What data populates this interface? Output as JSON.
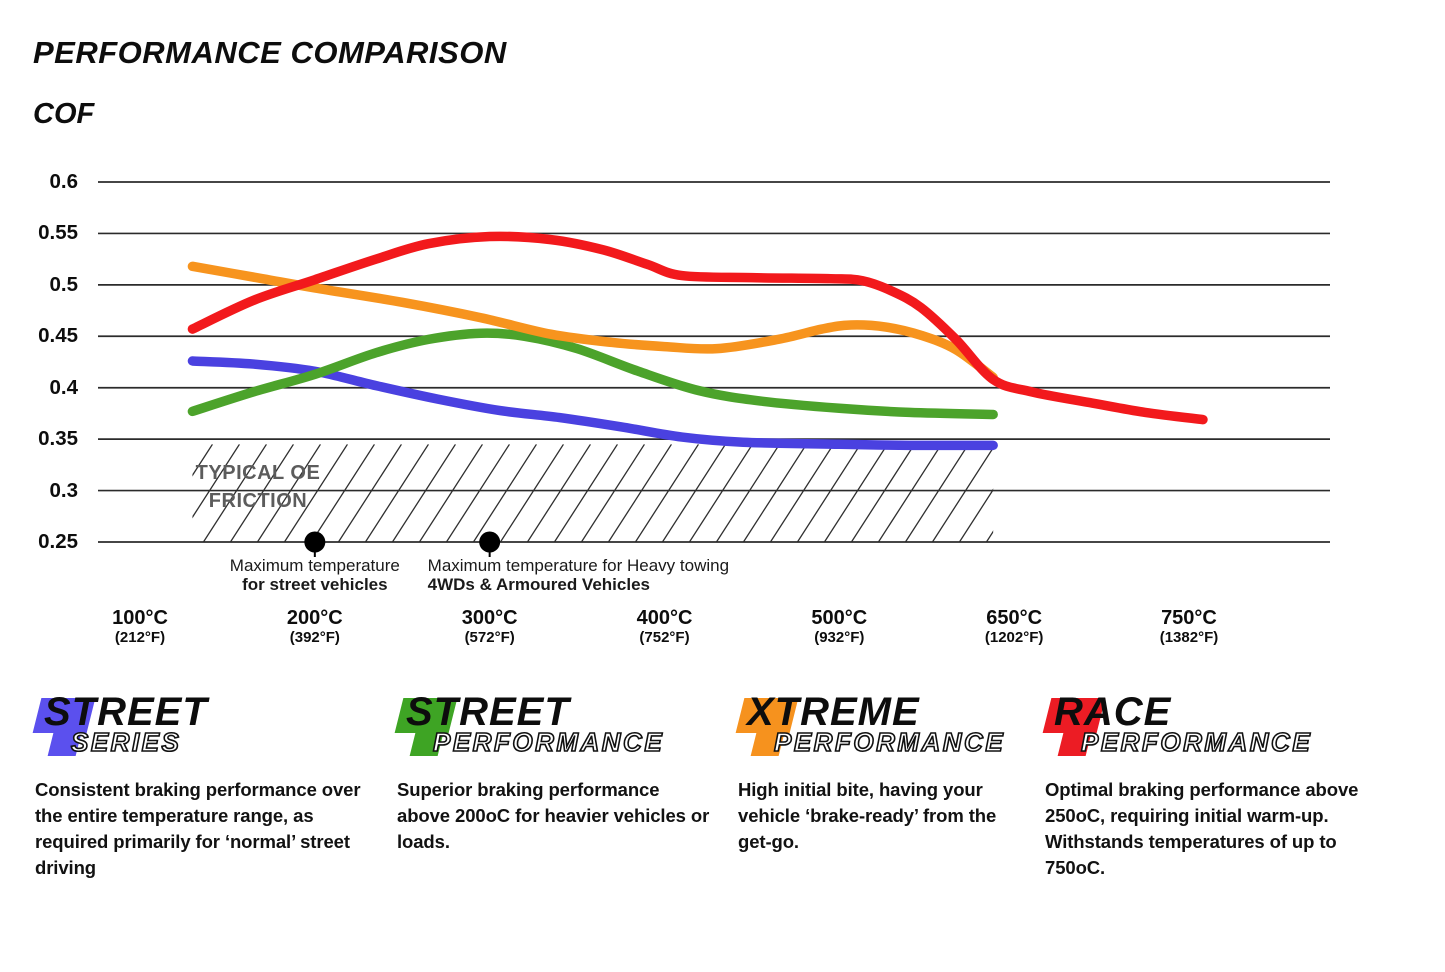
{
  "header": {
    "title": "PERFORMANCE COMPARISON",
    "axis_title": "COF"
  },
  "chart_data": {
    "type": "line",
    "title": "PERFORMANCE COMPARISON",
    "ylabel": "COF",
    "ylim": [
      0.25,
      0.6
    ],
    "grid": true,
    "y_ticks": [
      "0.6",
      "0.55",
      "0.5",
      "0.45",
      "0.4",
      "0.35",
      "0.3",
      "0.25"
    ],
    "x_ticks": [
      {
        "t": 100,
        "celsius": "100°C",
        "fahrenheit": "(212°F)"
      },
      {
        "t": 200,
        "celsius": "200°C",
        "fahrenheit": "(392°F)"
      },
      {
        "t": 300,
        "celsius": "300°C",
        "fahrenheit": "(572°F)"
      },
      {
        "t": 400,
        "celsius": "400°C",
        "fahrenheit": "(752°F)"
      },
      {
        "t": 500,
        "celsius": "500°C",
        "fahrenheit": "(932°F)"
      },
      {
        "t": 650,
        "celsius": "650°C",
        "fahrenheit": "(1202°F)"
      },
      {
        "t": 750,
        "celsius": "750°C",
        "fahrenheit": "(1382°F)"
      }
    ],
    "series": [
      {
        "name": "Street Series",
        "color": "#4a41e0",
        "points": [
          [
            130,
            0.426
          ],
          [
            165,
            0.423
          ],
          [
            200,
            0.416
          ],
          [
            235,
            0.402
          ],
          [
            270,
            0.389
          ],
          [
            305,
            0.378
          ],
          [
            340,
            0.371
          ],
          [
            375,
            0.362
          ],
          [
            410,
            0.352
          ],
          [
            445,
            0.347
          ],
          [
            500,
            0.345
          ],
          [
            560,
            0.344
          ],
          [
            632,
            0.344
          ]
        ]
      },
      {
        "name": "Street Performance",
        "color": "#4ca32b",
        "points": [
          [
            130,
            0.377
          ],
          [
            165,
            0.396
          ],
          [
            200,
            0.413
          ],
          [
            235,
            0.434
          ],
          [
            265,
            0.447
          ],
          [
            295,
            0.453
          ],
          [
            320,
            0.45
          ],
          [
            350,
            0.438
          ],
          [
            385,
            0.416
          ],
          [
            420,
            0.397
          ],
          [
            455,
            0.387
          ],
          [
            500,
            0.38
          ],
          [
            560,
            0.376
          ],
          [
            632,
            0.374
          ]
        ]
      },
      {
        "name": "Xtreme Performance",
        "color": "#f7941e",
        "points": [
          [
            130,
            0.518
          ],
          [
            170,
            0.506
          ],
          [
            200,
            0.497
          ],
          [
            250,
            0.483
          ],
          [
            295,
            0.468
          ],
          [
            335,
            0.452
          ],
          [
            370,
            0.444
          ],
          [
            400,
            0.44
          ],
          [
            430,
            0.438
          ],
          [
            465,
            0.447
          ],
          [
            490,
            0.457
          ],
          [
            510,
            0.461
          ],
          [
            540,
            0.459
          ],
          [
            570,
            0.451
          ],
          [
            600,
            0.437
          ],
          [
            632,
            0.41
          ]
        ]
      },
      {
        "name": "Race Performance",
        "color": "#f2191c",
        "points": [
          [
            130,
            0.457
          ],
          [
            165,
            0.485
          ],
          [
            200,
            0.505
          ],
          [
            235,
            0.525
          ],
          [
            265,
            0.54
          ],
          [
            300,
            0.547
          ],
          [
            335,
            0.544
          ],
          [
            365,
            0.534
          ],
          [
            390,
            0.52
          ],
          [
            410,
            0.509
          ],
          [
            450,
            0.507
          ],
          [
            495,
            0.506
          ],
          [
            520,
            0.504
          ],
          [
            545,
            0.494
          ],
          [
            570,
            0.478
          ],
          [
            600,
            0.447
          ],
          [
            632,
            0.408
          ],
          [
            660,
            0.396
          ],
          [
            695,
            0.385
          ],
          [
            725,
            0.376
          ],
          [
            758,
            0.369
          ]
        ]
      }
    ],
    "oe_region": {
      "label": [
        "TYPICAL OE",
        "FRICTION"
      ],
      "t_range": [
        130,
        632
      ],
      "cof_range": [
        0.25,
        0.345
      ]
    },
    "annotations": [
      {
        "t": 200,
        "align": "center",
        "line1": "Maximum temperature",
        "line2": "for street vehicles"
      },
      {
        "t": 300,
        "align": "left",
        "line1": "Maximum temperature for Heavy towing",
        "line2": "4WDs & Armoured Vehicles"
      }
    ]
  },
  "legend": [
    {
      "word1": "STREET",
      "word2": "SERIES",
      "color": "#5b50ee",
      "description": "Consistent braking performance over the entire temperature range, as required primarily for ‘normal’ street driving"
    },
    {
      "word1": "STREET",
      "word2": "PERFORMANCE",
      "color": "#3ea424",
      "description": "Superior braking performance above 200oC for heavier vehicles or loads."
    },
    {
      "word1": "XTREME",
      "word2": "PERFORMANCE",
      "color": "#f6921e",
      "description": "High initial bite, having your vehicle ‘brake-ready’ from the get-go."
    },
    {
      "word1": "RACE",
      "word2": "PERFORMANCE",
      "color": "#ec1c24",
      "description": "Optimal braking performance above 250oC, requiring initial warm-up. Withstands temperatures of up to 750oC."
    }
  ]
}
